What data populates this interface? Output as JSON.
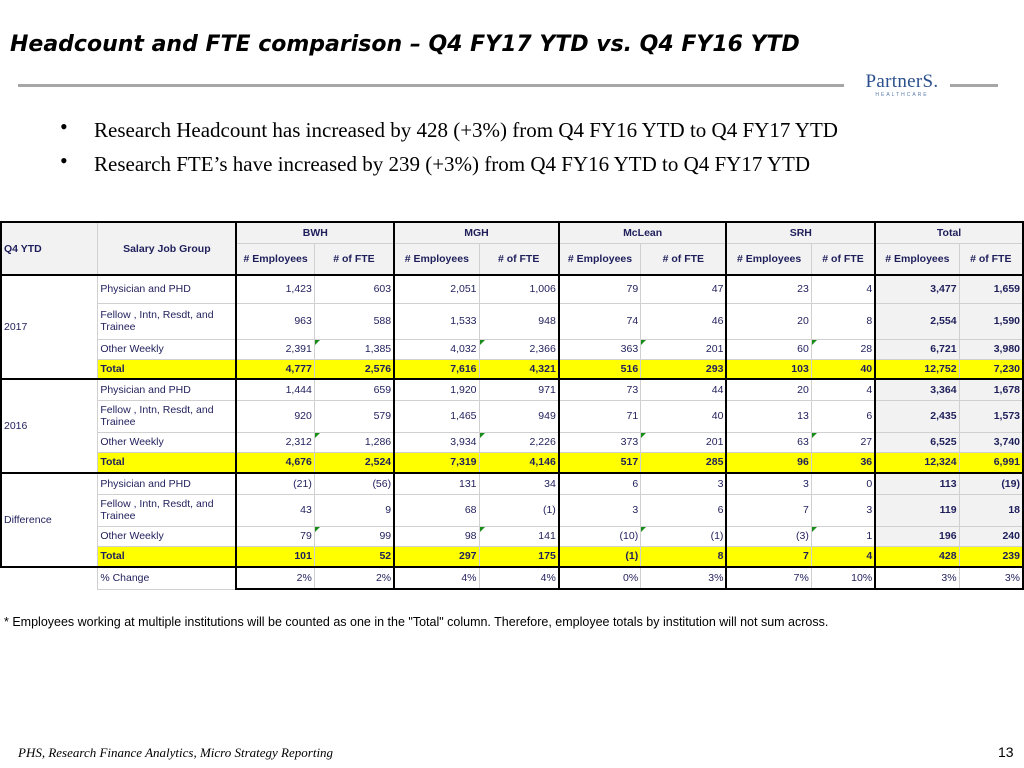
{
  "header": {
    "title": "Headcount and FTE comparison –  Q4 FY17 YTD vs. Q4 FY16 YTD",
    "logo_text": "PartnerS.",
    "logo_sub": "HEALTHCARE"
  },
  "bullets": [
    "Research Headcount has increased by 428 (+3%) from Q4 FY16 YTD to Q4 FY17 YTD",
    "Research FTE’s have increased by 239 (+3%) from Q4 FY16 YTD to Q4 FY17 YTD"
  ],
  "table": {
    "col_q4": "Q4 YTD",
    "col_group": "Salary Job Group",
    "institutions": [
      "BWH",
      "MGH",
      "McLean",
      "SRH",
      "Total"
    ],
    "sub_emp": "# Employees",
    "sub_fte": "# of FTE",
    "sections": [
      {
        "label": "2017",
        "rows": [
          {
            "group": "Physician and PHD",
            "vals": [
              "1,423",
              "603",
              "2,051",
              "1,006",
              "79",
              "47",
              "23",
              "4",
              "3,477",
              "1,659"
            ]
          },
          {
            "group": "Fellow , Intn, Resdt, and Trainee",
            "vals": [
              "963",
              "588",
              "1,533",
              "948",
              "74",
              "46",
              "20",
              "8",
              "2,554",
              "1,590"
            ]
          },
          {
            "group": "Other Weekly",
            "vals": [
              "2,391",
              "1,385",
              "4,032",
              "2,366",
              "363",
              "201",
              "60",
              "28",
              "6,721",
              "3,980"
            ]
          },
          {
            "group": "Total",
            "vals": [
              "4,777",
              "2,576",
              "7,616",
              "4,321",
              "516",
              "293",
              "103",
              "40",
              "12,752",
              "7,230"
            ]
          }
        ]
      },
      {
        "label": "2016",
        "rows": [
          {
            "group": "Physician and PHD",
            "vals": [
              "1,444",
              "659",
              "1,920",
              "971",
              "73",
              "44",
              "20",
              "4",
              "3,364",
              "1,678"
            ]
          },
          {
            "group": "Fellow , Intn, Resdt, and Trainee",
            "vals": [
              "920",
              "579",
              "1,465",
              "949",
              "71",
              "40",
              "13",
              "6",
              "2,435",
              "1,573"
            ]
          },
          {
            "group": "Other Weekly",
            "vals": [
              "2,312",
              "1,286",
              "3,934",
              "2,226",
              "373",
              "201",
              "63",
              "27",
              "6,525",
              "3,740"
            ]
          },
          {
            "group": "Total",
            "vals": [
              "4,676",
              "2,524",
              "7,319",
              "4,146",
              "517",
              "285",
              "96",
              "36",
              "12,324",
              "6,991"
            ]
          }
        ]
      },
      {
        "label": "Difference",
        "rows": [
          {
            "group": "Physician and PHD",
            "vals": [
              "(21)",
              "(56)",
              "131",
              "34",
              "6",
              "3",
              "3",
              "0",
              "113",
              "(19)"
            ]
          },
          {
            "group": "Fellow , Intn, Resdt, and Trainee",
            "vals": [
              "43",
              "9",
              "68",
              "(1)",
              "3",
              "6",
              "7",
              "3",
              "119",
              "18"
            ]
          },
          {
            "group": "Other Weekly",
            "vals": [
              "79",
              "99",
              "98",
              "141",
              "(10)",
              "(1)",
              "(3)",
              "1",
              "196",
              "240"
            ]
          },
          {
            "group": "Total",
            "vals": [
              "101",
              "52",
              "297",
              "175",
              "(1)",
              "8",
              "7",
              "4",
              "428",
              "239"
            ]
          }
        ]
      }
    ],
    "change_row": {
      "group": "% Change",
      "vals": [
        "2%",
        "2%",
        "4%",
        "4%",
        "0%",
        "3%",
        "7%",
        "10%",
        "3%",
        "3%"
      ]
    }
  },
  "note": "* Employees working at multiple institutions will be counted as one in the \"Total\" column.  Therefore, employee totals by institution will not sum across.",
  "footer": {
    "source": "PHS, Research Finance Analytics, Micro Strategy Reporting",
    "page": "13"
  }
}
